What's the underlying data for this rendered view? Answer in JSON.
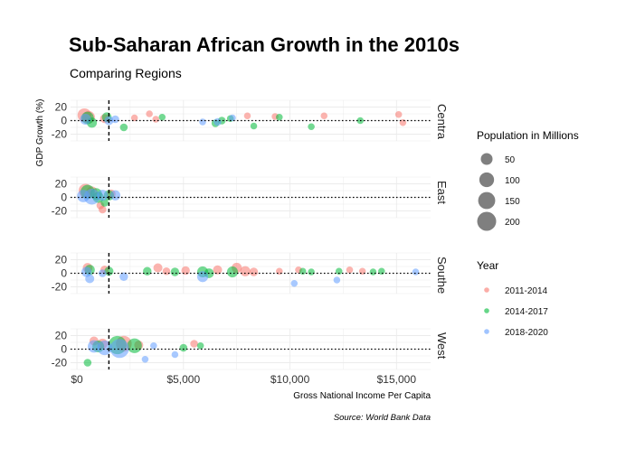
{
  "chart_data": {
    "type": "scatter",
    "title": "Sub-Saharan African Growth in the 2010s",
    "subtitle": "Comparing Regions",
    "xlabel": "Gross National Income Per Capita",
    "ylabel": "GDP Growth (%)",
    "caption": "Source: World Bank Data",
    "xlim": [
      -300,
      16600
    ],
    "ylim": [
      -30,
      30
    ],
    "x_ticks": [
      0,
      5000,
      10000,
      15000
    ],
    "x_tick_labels": [
      "$0",
      "$5,000",
      "$10,000",
      "$15,000"
    ],
    "y_ticks": [
      20,
      0,
      -20
    ],
    "y_tick_labels": [
      "20",
      "0",
      "-20"
    ],
    "reference_lines": {
      "vertical_dashed_x": 1500,
      "horizontal_dotted_y": 0
    },
    "grid": true,
    "facets": [
      "Centra",
      "East",
      "Southe",
      "West"
    ],
    "legend_size": {
      "title": "Population in Millions",
      "entries": [
        {
          "label": "50",
          "value": 50
        },
        {
          "label": "100",
          "value": 100
        },
        {
          "label": "150",
          "value": 150
        },
        {
          "label": "200",
          "value": 200
        }
      ]
    },
    "legend_color": {
      "title": "Year",
      "entries": [
        {
          "label": "2011-2014",
          "color": "#f8766d"
        },
        {
          "label": "2014-2017",
          "color": "#00ba38"
        },
        {
          "label": "2018-2020",
          "color": "#619cff"
        }
      ]
    },
    "series": [
      {
        "name": "2011-2014",
        "color": "#f8766d",
        "points": [
          {
            "facet": "Centra",
            "x": 350,
            "y": 8,
            "pop": 80
          },
          {
            "facet": "Centra",
            "x": 550,
            "y": 5,
            "pop": 60
          },
          {
            "facet": "Centra",
            "x": 1300,
            "y": 3,
            "pop": 20
          },
          {
            "facet": "Centra",
            "x": 2700,
            "y": 4,
            "pop": 5
          },
          {
            "facet": "Centra",
            "x": 3400,
            "y": 10,
            "pop": 5
          },
          {
            "facet": "Centra",
            "x": 3700,
            "y": 2,
            "pop": 5
          },
          {
            "facet": "Centra",
            "x": 8000,
            "y": 7,
            "pop": 5
          },
          {
            "facet": "Centra",
            "x": 9300,
            "y": 6,
            "pop": 5
          },
          {
            "facet": "Centra",
            "x": 11600,
            "y": 7,
            "pop": 5
          },
          {
            "facet": "Centra",
            "x": 15100,
            "y": 9,
            "pop": 5
          },
          {
            "facet": "Centra",
            "x": 15300,
            "y": -3,
            "pop": 5
          },
          {
            "facet": "East",
            "x": 400,
            "y": 10,
            "pop": 80
          },
          {
            "facet": "East",
            "x": 700,
            "y": 8,
            "pop": 40
          },
          {
            "facet": "East",
            "x": 1100,
            "y": -12,
            "pop": 10
          },
          {
            "facet": "East",
            "x": 1200,
            "y": -18,
            "pop": 10
          },
          {
            "facet": "East",
            "x": 1600,
            "y": 5,
            "pop": 20
          },
          {
            "facet": "Southe",
            "x": 500,
            "y": 8,
            "pop": 25
          },
          {
            "facet": "Southe",
            "x": 1300,
            "y": 5,
            "pop": 15
          },
          {
            "facet": "Southe",
            "x": 3800,
            "y": 8,
            "pop": 20
          },
          {
            "facet": "Southe",
            "x": 4200,
            "y": 3,
            "pop": 10
          },
          {
            "facet": "Southe",
            "x": 5100,
            "y": 4,
            "pop": 15
          },
          {
            "facet": "Southe",
            "x": 6600,
            "y": 5,
            "pop": 20
          },
          {
            "facet": "Southe",
            "x": 7500,
            "y": 8,
            "pop": 30
          },
          {
            "facet": "Southe",
            "x": 7900,
            "y": 3,
            "pop": 30
          },
          {
            "facet": "Southe",
            "x": 8300,
            "y": 2,
            "pop": 15
          },
          {
            "facet": "Southe",
            "x": 9500,
            "y": 3,
            "pop": 5
          },
          {
            "facet": "Southe",
            "x": 10400,
            "y": 5,
            "pop": 5
          },
          {
            "facet": "Southe",
            "x": 12800,
            "y": 5,
            "pop": 5
          },
          {
            "facet": "Southe",
            "x": 13400,
            "y": 3,
            "pop": 5
          },
          {
            "facet": "West",
            "x": 800,
            "y": 12,
            "pop": 20
          },
          {
            "facet": "West",
            "x": 1200,
            "y": 8,
            "pop": 30
          },
          {
            "facet": "West",
            "x": 2200,
            "y": 8,
            "pop": 120
          },
          {
            "facet": "West",
            "x": 2900,
            "y": 6,
            "pop": 20
          },
          {
            "facet": "West",
            "x": 5500,
            "y": 8,
            "pop": 10
          }
        ]
      },
      {
        "name": "2014-2017",
        "color": "#00ba38",
        "points": [
          {
            "facet": "Centra",
            "x": 500,
            "y": 4,
            "pop": 60
          },
          {
            "facet": "Centra",
            "x": 700,
            "y": -3,
            "pop": 30
          },
          {
            "facet": "Centra",
            "x": 1400,
            "y": 5,
            "pop": 25
          },
          {
            "facet": "Centra",
            "x": 2200,
            "y": -10,
            "pop": 10
          },
          {
            "facet": "Centra",
            "x": 4000,
            "y": 5,
            "pop": 5
          },
          {
            "facet": "Centra",
            "x": 6500,
            "y": -4,
            "pop": 10
          },
          {
            "facet": "Centra",
            "x": 6800,
            "y": 0,
            "pop": 10
          },
          {
            "facet": "Centra",
            "x": 7200,
            "y": 3,
            "pop": 5
          },
          {
            "facet": "Centra",
            "x": 8300,
            "y": -8,
            "pop": 5
          },
          {
            "facet": "Centra",
            "x": 9500,
            "y": 5,
            "pop": 5
          },
          {
            "facet": "Centra",
            "x": 11000,
            "y": -9,
            "pop": 5
          },
          {
            "facet": "Centra",
            "x": 13300,
            "y": 0,
            "pop": 5
          },
          {
            "facet": "East",
            "x": 500,
            "y": 8,
            "pop": 90
          },
          {
            "facet": "East",
            "x": 900,
            "y": 5,
            "pop": 50
          },
          {
            "facet": "East",
            "x": 1000,
            "y": 0,
            "pop": 40
          },
          {
            "facet": "East",
            "x": 1500,
            "y": 3,
            "pop": 30
          },
          {
            "facet": "East",
            "x": 1300,
            "y": -8,
            "pop": 10
          },
          {
            "facet": "Southe",
            "x": 600,
            "y": 5,
            "pop": 30
          },
          {
            "facet": "Southe",
            "x": 1500,
            "y": 3,
            "pop": 20
          },
          {
            "facet": "Southe",
            "x": 3300,
            "y": 3,
            "pop": 15
          },
          {
            "facet": "Southe",
            "x": 4600,
            "y": 2,
            "pop": 15
          },
          {
            "facet": "Southe",
            "x": 5900,
            "y": 2,
            "pop": 40
          },
          {
            "facet": "Southe",
            "x": 6200,
            "y": 0,
            "pop": 25
          },
          {
            "facet": "Southe",
            "x": 7300,
            "y": 2,
            "pop": 40
          },
          {
            "facet": "Southe",
            "x": 10600,
            "y": 3,
            "pop": 5
          },
          {
            "facet": "Southe",
            "x": 11000,
            "y": 2,
            "pop": 5
          },
          {
            "facet": "Southe",
            "x": 12300,
            "y": 3,
            "pop": 5
          },
          {
            "facet": "Southe",
            "x": 13900,
            "y": 2,
            "pop": 5
          },
          {
            "facet": "Southe",
            "x": 14300,
            "y": 3,
            "pop": 5
          },
          {
            "facet": "West",
            "x": 500,
            "y": -20,
            "pop": 10
          },
          {
            "facet": "West",
            "x": 1000,
            "y": 4,
            "pop": 50
          },
          {
            "facet": "West",
            "x": 1900,
            "y": 6,
            "pop": 180
          },
          {
            "facet": "West",
            "x": 2700,
            "y": 5,
            "pop": 100
          },
          {
            "facet": "West",
            "x": 5000,
            "y": 2,
            "pop": 10
          },
          {
            "facet": "West",
            "x": 5800,
            "y": 5,
            "pop": 5
          }
        ]
      },
      {
        "name": "2018-2020",
        "color": "#619cff",
        "points": [
          {
            "facet": "Centra",
            "x": 400,
            "y": 2,
            "pop": 40
          },
          {
            "facet": "Centra",
            "x": 1500,
            "y": 0,
            "pop": 20
          },
          {
            "facet": "Centra",
            "x": 1800,
            "y": 2,
            "pop": 10
          },
          {
            "facet": "Centra",
            "x": 5900,
            "y": -2,
            "pop": 5
          },
          {
            "facet": "Centra",
            "x": 6600,
            "y": -2,
            "pop": 10
          },
          {
            "facet": "Centra",
            "x": 7300,
            "y": 4,
            "pop": 5
          },
          {
            "facet": "East",
            "x": 300,
            "y": 2,
            "pop": 60
          },
          {
            "facet": "East",
            "x": 700,
            "y": 1,
            "pop": 120
          },
          {
            "facet": "East",
            "x": 1200,
            "y": 3,
            "pop": 40
          },
          {
            "facet": "East",
            "x": 1800,
            "y": 3,
            "pop": 30
          },
          {
            "facet": "Southe",
            "x": 450,
            "y": 2,
            "pop": 30
          },
          {
            "facet": "Southe",
            "x": 600,
            "y": -8,
            "pop": 20
          },
          {
            "facet": "Southe",
            "x": 1200,
            "y": 0,
            "pop": 10
          },
          {
            "facet": "Southe",
            "x": 2200,
            "y": -5,
            "pop": 15
          },
          {
            "facet": "Southe",
            "x": 5900,
            "y": -5,
            "pop": 40
          },
          {
            "facet": "Southe",
            "x": 10200,
            "y": -15,
            "pop": 5
          },
          {
            "facet": "Southe",
            "x": 12200,
            "y": -10,
            "pop": 5
          },
          {
            "facet": "Southe",
            "x": 15900,
            "y": 2,
            "pop": 5
          },
          {
            "facet": "West",
            "x": 800,
            "y": 4,
            "pop": 60
          },
          {
            "facet": "West",
            "x": 1300,
            "y": 2,
            "pop": 100
          },
          {
            "facet": "West",
            "x": 2000,
            "y": 1,
            "pop": 200
          },
          {
            "facet": "West",
            "x": 3200,
            "y": -15,
            "pop": 5
          },
          {
            "facet": "West",
            "x": 3600,
            "y": 5,
            "pop": 5
          },
          {
            "facet": "West",
            "x": 4600,
            "y": -8,
            "pop": 5
          }
        ]
      }
    ]
  }
}
